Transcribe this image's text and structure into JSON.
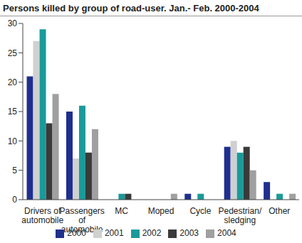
{
  "chart_data": {
    "type": "bar",
    "title": "Persons killed by group of road-user. Jan.- Feb. 2000-2004",
    "categories": [
      "Drivers of automobile",
      "Passengers of automobile",
      "MC",
      "Moped",
      "Cycle",
      "Pedestrian/ sledging",
      "Other"
    ],
    "series": [
      {
        "name": "2000",
        "color": "#1f2f8f",
        "values": [
          21,
          15,
          0,
          0,
          1,
          9,
          3
        ]
      },
      {
        "name": "2001",
        "color": "#d0d0d0",
        "values": [
          27,
          7,
          0,
          0,
          0,
          10,
          0
        ]
      },
      {
        "name": "2002",
        "color": "#1a9a9a",
        "values": [
          29,
          16,
          1,
          0,
          1,
          8,
          1
        ]
      },
      {
        "name": "2003",
        "color": "#3a3a3a",
        "values": [
          13,
          8,
          1,
          0,
          0,
          9,
          0
        ]
      },
      {
        "name": "2004",
        "color": "#a0a0a0",
        "values": [
          18,
          12,
          0,
          1,
          0,
          5,
          1
        ]
      }
    ],
    "ylim": [
      0,
      30
    ],
    "yticks": [
      0,
      5,
      10,
      15,
      20,
      25,
      30
    ],
    "grid": false,
    "legend": "bottom"
  }
}
